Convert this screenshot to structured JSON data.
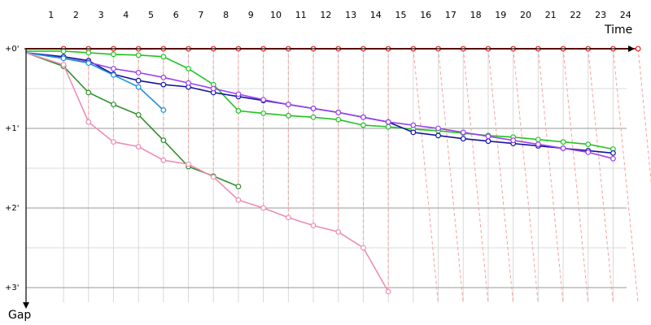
{
  "chart_data": {
    "type": "line",
    "xlabel": "Time",
    "ylabel": "Gap",
    "x_ticks": [
      "1",
      "2",
      "3",
      "4",
      "5",
      "6",
      "7",
      "8",
      "9",
      "10",
      "11",
      "12",
      "13",
      "14",
      "15",
      "16",
      "17",
      "18",
      "19",
      "20",
      "21",
      "22",
      "23",
      "24"
    ],
    "y_ticks": [
      "+0'",
      "+1'",
      "+2'",
      "+3'"
    ],
    "y_range_minutes": [
      0,
      3
    ],
    "grid": true,
    "colors": {
      "grid_major": "#999999",
      "grid_minor": "#d9d9d9",
      "connector": "#f4a0a0",
      "axis": "#000000"
    },
    "series": [
      {
        "color": "#e8201c",
        "points": [
          [
            0,
            0
          ],
          [
            1.5,
            0
          ],
          [
            2.5,
            0
          ],
          [
            3.5,
            0
          ],
          [
            4.5,
            0
          ],
          [
            5.5,
            0
          ],
          [
            6.5,
            0
          ],
          [
            7.5,
            0
          ],
          [
            8.5,
            0
          ],
          [
            9.5,
            0
          ],
          [
            10.5,
            0
          ],
          [
            11.5,
            0
          ],
          [
            12.5,
            0
          ],
          [
            13.5,
            0
          ],
          [
            14.5,
            0
          ],
          [
            15.5,
            0
          ],
          [
            16.5,
            0
          ],
          [
            17.5,
            0
          ],
          [
            18.5,
            0
          ],
          [
            19.5,
            0
          ],
          [
            20.5,
            0
          ],
          [
            21.5,
            0
          ],
          [
            22.5,
            0
          ],
          [
            23.5,
            0
          ],
          [
            24.5,
            0
          ]
        ]
      },
      {
        "color": "#22c322",
        "points": [
          [
            0,
            0.03
          ],
          [
            1.5,
            0.03
          ],
          [
            2.5,
            0.05
          ],
          [
            3.5,
            0.07
          ],
          [
            4.5,
            0.08
          ],
          [
            5.5,
            0.1
          ],
          [
            6.5,
            0.25
          ],
          [
            7.5,
            0.45
          ],
          [
            8.5,
            0.78
          ],
          [
            9.5,
            0.81
          ],
          [
            10.5,
            0.84
          ],
          [
            11.5,
            0.86
          ],
          [
            12.5,
            0.89
          ],
          [
            13.5,
            0.96
          ],
          [
            14.5,
            0.98
          ],
          [
            15.5,
            1.01
          ],
          [
            16.5,
            1.03
          ],
          [
            17.5,
            1.06
          ],
          [
            18.5,
            1.09
          ],
          [
            19.5,
            1.11
          ],
          [
            20.5,
            1.14
          ],
          [
            21.5,
            1.17
          ],
          [
            22.5,
            1.2
          ],
          [
            23.5,
            1.26
          ]
        ]
      },
      {
        "color": "#1414a0",
        "points": [
          [
            0,
            0.05
          ],
          [
            1.5,
            0.1
          ],
          [
            2.5,
            0.15
          ],
          [
            3.5,
            0.32
          ],
          [
            4.5,
            0.4
          ],
          [
            5.5,
            0.45
          ],
          [
            6.5,
            0.48
          ],
          [
            7.5,
            0.55
          ],
          [
            8.5,
            0.6
          ],
          [
            9.5,
            0.65
          ],
          [
            10.5,
            0.7
          ],
          [
            11.5,
            0.75
          ],
          [
            12.5,
            0.8
          ],
          [
            13.5,
            0.86
          ],
          [
            14.5,
            0.92
          ],
          [
            15.5,
            1.05
          ],
          [
            16.5,
            1.09
          ],
          [
            17.5,
            1.13
          ],
          [
            18.5,
            1.16
          ],
          [
            19.5,
            1.19
          ],
          [
            20.5,
            1.22
          ],
          [
            21.5,
            1.25
          ],
          [
            22.5,
            1.28
          ],
          [
            23.5,
            1.31
          ]
        ]
      },
      {
        "color": "#9b40f0",
        "points": [
          [
            0,
            0.05
          ],
          [
            1.5,
            0.12
          ],
          [
            2.5,
            0.17
          ],
          [
            3.5,
            0.25
          ],
          [
            4.5,
            0.3
          ],
          [
            5.5,
            0.36
          ],
          [
            6.5,
            0.43
          ],
          [
            7.5,
            0.5
          ],
          [
            8.5,
            0.57
          ],
          [
            9.5,
            0.64
          ],
          [
            10.5,
            0.7
          ],
          [
            11.5,
            0.75
          ],
          [
            12.5,
            0.8
          ],
          [
            13.5,
            0.86
          ],
          [
            14.5,
            0.92
          ],
          [
            15.5,
            0.96
          ],
          [
            16.5,
            1.0
          ],
          [
            17.5,
            1.05
          ],
          [
            18.5,
            1.1
          ],
          [
            19.5,
            1.15
          ],
          [
            20.5,
            1.2
          ],
          [
            21.5,
            1.25
          ],
          [
            22.5,
            1.3
          ],
          [
            23.5,
            1.38
          ]
        ]
      },
      {
        "color": "#1e90d8",
        "points": [
          [
            0,
            0.05
          ],
          [
            1.5,
            0.12
          ],
          [
            2.5,
            0.18
          ],
          [
            3.5,
            0.33
          ],
          [
            4.5,
            0.48
          ],
          [
            5.5,
            0.77
          ]
        ]
      },
      {
        "color": "#2d8f2d",
        "points": [
          [
            0,
            0.05
          ],
          [
            1.5,
            0.22
          ],
          [
            2.5,
            0.55
          ],
          [
            3.5,
            0.7
          ],
          [
            4.5,
            0.83
          ],
          [
            5.5,
            1.15
          ],
          [
            6.5,
            1.48
          ],
          [
            7.5,
            1.6
          ],
          [
            8.5,
            1.73
          ]
        ]
      },
      {
        "color": "#f08cb4",
        "points": [
          [
            0,
            0.05
          ],
          [
            1.5,
            0.2
          ],
          [
            2.5,
            0.92
          ],
          [
            3.5,
            1.17
          ],
          [
            4.5,
            1.23
          ],
          [
            5.5,
            1.4
          ],
          [
            6.5,
            1.45
          ],
          [
            7.5,
            1.61
          ],
          [
            8.5,
            1.9
          ],
          [
            9.5,
            2.0
          ],
          [
            10.5,
            2.12
          ],
          [
            11.5,
            2.22
          ],
          [
            12.5,
            2.3
          ],
          [
            13.5,
            2.5
          ],
          [
            14.5,
            3.05
          ]
        ]
      }
    ]
  }
}
